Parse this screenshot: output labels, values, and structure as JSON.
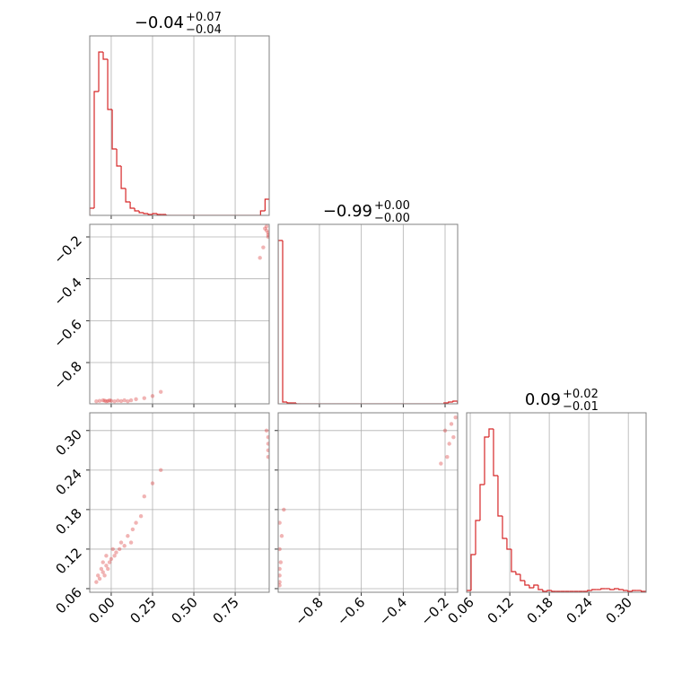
{
  "chart_data": {
    "type": "corner",
    "color": "#d62728",
    "titles": [
      {
        "value": "−0.04",
        "plus": "+0.07",
        "minus": "−0.04"
      },
      {
        "value": "−0.99",
        "plus": "+0.00",
        "minus": "−0.00"
      },
      {
        "value": "0.09",
        "plus": "+0.02",
        "minus": "−0.01"
      }
    ],
    "params": [
      {
        "lim": [
          -0.13,
          0.956
        ],
        "ticks": [
          {
            "value": 0,
            "label": "0.00"
          },
          {
            "value": 0.25,
            "label": "0.25"
          },
          {
            "value": 0.5,
            "label": "0.50"
          },
          {
            "value": 0.75,
            "label": "0.75"
          }
        ]
      },
      {
        "lim": [
          -0.997,
          -0.14
        ],
        "ticks": [
          {
            "value": -0.8,
            "label": "−0.8"
          },
          {
            "value": -0.6,
            "label": "−0.6"
          },
          {
            "value": -0.4,
            "label": "−0.4"
          },
          {
            "value": -0.2,
            "label": "−0.2"
          }
        ]
      },
      {
        "lim": [
          0.0545,
          0.327
        ],
        "ticks": [
          {
            "value": 0.06,
            "label": "0.06"
          },
          {
            "value": 0.12,
            "label": "0.12"
          },
          {
            "value": 0.18,
            "label": "0.18"
          },
          {
            "value": 0.24,
            "label": "0.24"
          },
          {
            "value": 0.3,
            "label": "0.30"
          }
        ]
      }
    ],
    "histograms": [
      {
        "bins": [
          -0.13,
          -0.1028,
          -0.0756,
          -0.0484,
          -0.0212,
          0.006,
          0.0332,
          0.0604,
          0.0876,
          0.1148,
          0.142,
          0.1692,
          0.1964,
          0.2236,
          0.2508,
          0.278,
          0.3052,
          0.3324,
          0.3596,
          0.3868,
          0.414,
          0.4412,
          0.4684,
          0.4956,
          0.5228,
          0.55,
          0.5772,
          0.6044,
          0.6316,
          0.6588,
          0.686,
          0.7132,
          0.7404,
          0.7676,
          0.7948,
          0.822,
          0.8492,
          0.8764,
          0.9036,
          0.9308,
          0.958
        ],
        "counts": [
          8,
          138,
          182,
          174,
          118,
          74,
          55,
          30,
          15,
          8,
          5,
          3,
          2,
          1,
          2,
          1,
          1,
          0,
          0,
          0,
          0,
          0,
          0,
          0,
          0,
          0,
          0,
          0,
          0,
          0,
          0,
          0,
          0,
          0,
          0,
          0,
          0,
          0,
          5,
          18
        ]
      },
      {
        "bins": [
          -0.997,
          -0.9756,
          -0.9542,
          -0.9328,
          -0.9114,
          -0.89,
          -0.8686,
          -0.8472,
          -0.8258,
          -0.8044,
          -0.783,
          -0.7616,
          -0.7402,
          -0.7188,
          -0.6974,
          -0.676,
          -0.6546,
          -0.6332,
          -0.6118,
          -0.5904,
          -0.569,
          -0.5476,
          -0.5262,
          -0.5048,
          -0.4834,
          -0.462,
          -0.4406,
          -0.4192,
          -0.3978,
          -0.3764,
          -0.355,
          -0.3336,
          -0.3122,
          -0.2908,
          -0.2694,
          -0.248,
          -0.2266,
          -0.2052,
          -0.1838,
          -0.1624,
          -0.141
        ],
        "counts": [
          182,
          2,
          1,
          1,
          0,
          0,
          0,
          0,
          0,
          0,
          0,
          0,
          0,
          0,
          0,
          0,
          0,
          0,
          0,
          0,
          0,
          0,
          0,
          0,
          0,
          0,
          0,
          0,
          0,
          0,
          0,
          0,
          0,
          0,
          0,
          0,
          0,
          1,
          2,
          3
        ]
      },
      {
        "bins": [
          0.0545,
          0.0613,
          0.0681,
          0.0749,
          0.0817,
          0.0885,
          0.0953,
          0.1021,
          0.1089,
          0.1157,
          0.1225,
          0.1293,
          0.1361,
          0.1429,
          0.1497,
          0.1565,
          0.1633,
          0.1701,
          0.1769,
          0.1837,
          0.1905,
          0.1973,
          0.2041,
          0.2109,
          0.2177,
          0.2245,
          0.2313,
          0.2381,
          0.2449,
          0.2517,
          0.2585,
          0.2653,
          0.2721,
          0.2789,
          0.2857,
          0.2925,
          0.2993,
          0.3061,
          0.3129,
          0.3197,
          0.3265
        ],
        "counts": [
          2,
          42,
          80,
          120,
          173,
          182,
          130,
          85,
          60,
          48,
          23,
          20,
          13,
          8,
          5,
          8,
          3,
          1,
          2,
          1,
          1,
          1,
          1,
          1,
          1,
          1,
          1,
          2,
          3,
          3,
          4,
          4,
          3,
          4,
          3,
          2,
          1,
          2,
          2,
          1
        ]
      }
    ],
    "scatter": [
      {
        "x": [
          -0.09,
          -0.07,
          -0.05,
          -0.04,
          -0.03,
          -0.02,
          -0.01,
          0.0,
          0.02,
          0.04,
          0.06,
          0.08,
          0.1,
          0.12,
          0.15,
          0.2,
          0.25,
          0.3,
          0.93,
          0.94,
          0.95,
          0.95,
          0.94,
          0.95,
          0.92,
          0.9
        ],
        "y": [
          -0.985,
          -0.983,
          -0.98,
          -0.982,
          -0.985,
          -0.984,
          -0.98,
          -0.983,
          -0.985,
          -0.982,
          -0.984,
          -0.98,
          -0.985,
          -0.98,
          -0.975,
          -0.97,
          -0.96,
          -0.94,
          -0.16,
          -0.17,
          -0.18,
          -0.2,
          -0.15,
          -0.19,
          -0.25,
          -0.3
        ]
      },
      {
        "x": [
          -0.09,
          -0.08,
          -0.07,
          -0.06,
          -0.05,
          -0.05,
          -0.04,
          -0.03,
          -0.03,
          -0.02,
          -0.01,
          0.0,
          0.01,
          0.02,
          0.03,
          0.05,
          0.06,
          0.08,
          0.1,
          0.12,
          0.13,
          0.15,
          0.18,
          0.2,
          0.25,
          0.3,
          0.95,
          0.95,
          0.94,
          0.95,
          0.95
        ],
        "y": [
          0.07,
          0.08,
          0.075,
          0.09,
          0.085,
          0.1,
          0.08,
          0.095,
          0.11,
          0.09,
          0.1,
          0.105,
          0.12,
          0.11,
          0.115,
          0.12,
          0.13,
          0.125,
          0.14,
          0.13,
          0.15,
          0.16,
          0.17,
          0.2,
          0.22,
          0.24,
          0.26,
          0.28,
          0.3,
          0.29,
          0.27
        ]
      },
      {
        "x": [
          -0.99,
          -0.99,
          -0.99,
          -0.985,
          -0.99,
          -0.98,
          -0.99,
          -0.97,
          -0.99,
          -0.2,
          -0.18,
          -0.16,
          -0.17,
          -0.19,
          -0.22,
          -0.15
        ],
        "y": [
          0.07,
          0.08,
          0.09,
          0.1,
          0.12,
          0.14,
          0.16,
          0.18,
          0.065,
          0.3,
          0.28,
          0.29,
          0.31,
          0.26,
          0.25,
          0.32
        ]
      }
    ]
  }
}
